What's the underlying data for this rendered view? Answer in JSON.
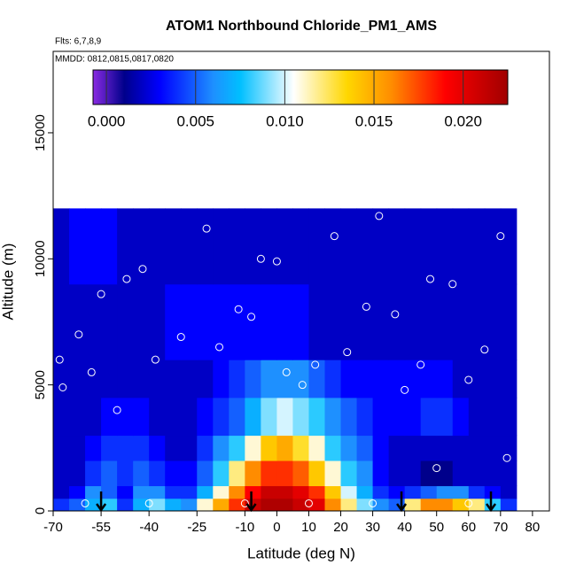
{
  "chart_data": {
    "type": "heatmap",
    "title": "ATOM1 Northbound Chloride_PM1_AMS",
    "annotations": [
      "Flts: 6,7,8,9",
      "MMDD: 0812,0815,0817,0820"
    ],
    "x_label": "Latitude (deg N)",
    "y_label": "Altitude (m)",
    "xlim": [
      -70,
      85.3
    ],
    "ylim": [
      0,
      18230
    ],
    "xticks": [
      -70,
      -55,
      -40,
      -25,
      -10,
      0,
      10,
      20,
      30,
      40,
      50,
      60,
      70,
      80
    ],
    "yticks": [
      0,
      5000,
      10000,
      15000
    ],
    "lat_edges": [
      -70,
      -65,
      -60,
      -55,
      -50,
      -45,
      -40,
      -35,
      -30,
      -25,
      -20,
      -15,
      -10,
      -5,
      0,
      5,
      10,
      15,
      20,
      25,
      30,
      35,
      40,
      45,
      50,
      55,
      60,
      65,
      70,
      75
    ],
    "alt_edges": [
      0,
      500,
      1000,
      2000,
      3000,
      4500,
      6000,
      9000,
      12000
    ],
    "z": [
      [
        0.004,
        0.005,
        0.007,
        0.008,
        0.004,
        0.007,
        0.009,
        0.007,
        0.006,
        0.011,
        0.015,
        0.018,
        0.021,
        0.022,
        0.022,
        0.021,
        0.02,
        0.016,
        0.012,
        0.009,
        0.006,
        0.005,
        0.012,
        0.016,
        0.016,
        0.014,
        0.012,
        0.008,
        0.004
      ],
      [
        0.002,
        0.003,
        0.006,
        0.005,
        0.003,
        0.006,
        0.006,
        0.004,
        0.004,
        0.007,
        0.011,
        0.016,
        0.019,
        0.021,
        0.021,
        0.02,
        0.018,
        0.014,
        0.01,
        0.007,
        0.004,
        0.003,
        0.004,
        0.005,
        0.006,
        0.006,
        0.004,
        0.003,
        0.002
      ],
      [
        0.002,
        0.002,
        0.004,
        0.005,
        0.004,
        0.005,
        0.004,
        0.003,
        0.003,
        0.005,
        0.008,
        0.012,
        0.016,
        0.018,
        0.018,
        0.017,
        0.014,
        0.011,
        0.008,
        0.006,
        0.003,
        0.002,
        0.002,
        0.001,
        0.001,
        0.002,
        0.002,
        0.002,
        0.002
      ],
      [
        0.002,
        0.002,
        0.003,
        0.004,
        0.004,
        0.004,
        0.003,
        0.002,
        0.002,
        0.004,
        0.006,
        0.008,
        0.011,
        0.014,
        0.015,
        0.013,
        0.011,
        0.008,
        0.006,
        0.005,
        0.003,
        0.002,
        0.002,
        0.002,
        0.002,
        0.002,
        0.002,
        0.002,
        0.002
      ],
      [
        0.002,
        0.002,
        0.002,
        0.003,
        0.003,
        0.003,
        0.002,
        0.002,
        0.002,
        0.003,
        0.004,
        0.005,
        0.007,
        0.009,
        0.01,
        0.009,
        0.008,
        0.006,
        0.005,
        0.004,
        0.003,
        0.003,
        0.003,
        0.004,
        0.004,
        0.003,
        0.002,
        0.002,
        0.002
      ],
      [
        0.002,
        0.002,
        0.002,
        0.002,
        0.002,
        0.002,
        0.002,
        0.002,
        0.002,
        0.002,
        0.003,
        0.004,
        0.005,
        0.006,
        0.006,
        0.006,
        0.005,
        0.004,
        0.003,
        0.003,
        0.003,
        0.003,
        0.003,
        0.003,
        0.003,
        0.002,
        0.002,
        0.002,
        0.002
      ],
      [
        0.002,
        0.002,
        0.002,
        0.002,
        0.002,
        0.002,
        0.002,
        0.003,
        0.003,
        0.003,
        0.003,
        0.003,
        0.003,
        0.003,
        0.003,
        0.003,
        0.002,
        0.002,
        0.002,
        0.002,
        0.002,
        0.002,
        0.002,
        0.002,
        0.002,
        0.002,
        0.002,
        0.002,
        0.002
      ],
      [
        0.002,
        0.003,
        0.003,
        0.003,
        0.002,
        0.002,
        0.002,
        0.002,
        0.002,
        0.002,
        0.002,
        0.002,
        0.002,
        0.002,
        0.002,
        0.002,
        0.002,
        0.002,
        0.002,
        0.002,
        0.002,
        0.002,
        0.002,
        0.002,
        0.002,
        0.002,
        0.002,
        0.002,
        0.002
      ]
    ],
    "clim": [
      -0.00075,
      0.0225
    ],
    "cticks": [
      {
        "value": 0,
        "label": "0.000"
      },
      {
        "value": 0.005,
        "label": "0.005"
      },
      {
        "value": 0.01,
        "label": "0.010"
      },
      {
        "value": 0.015,
        "label": "0.015"
      },
      {
        "value": 0.02,
        "label": "0.020"
      }
    ],
    "colorscale": [
      [
        -0.00075,
        "#8a2be2"
      ],
      [
        0.001,
        "#00008b"
      ],
      [
        0.003,
        "#0000ff"
      ],
      [
        0.006,
        "#1e90ff"
      ],
      [
        0.0075,
        "#00bfff"
      ],
      [
        0.0105,
        "#ffffff"
      ],
      [
        0.0135,
        "#ffd700"
      ],
      [
        0.016,
        "#ff8c00"
      ],
      [
        0.019,
        "#ff0000"
      ],
      [
        0.0225,
        "#a00000"
      ]
    ],
    "samples_lat": [
      -68,
      -67,
      -62,
      -58,
      -55,
      -50,
      -47,
      -42,
      -38,
      -30,
      -22,
      -18,
      -12,
      -8,
      -5,
      0,
      3,
      8,
      12,
      18,
      22,
      28,
      32,
      37,
      40,
      45,
      48,
      55,
      60,
      65,
      70,
      72,
      -60,
      -40,
      -10,
      10,
      30,
      50,
      60
    ],
    "samples_alt": [
      6000,
      4900,
      7000,
      5500,
      8600,
      4000,
      9200,
      9600,
      6000,
      6900,
      11200,
      6500,
      8000,
      7700,
      10000,
      9900,
      5500,
      5000,
      5800,
      10900,
      6300,
      8100,
      11700,
      7800,
      4800,
      5800,
      9200,
      9000,
      5200,
      6400,
      10900,
      2100,
      300,
      300,
      300,
      300,
      300,
      1700,
      300
    ],
    "arrows_lat": [
      -55,
      -8,
      39,
      67
    ]
  }
}
